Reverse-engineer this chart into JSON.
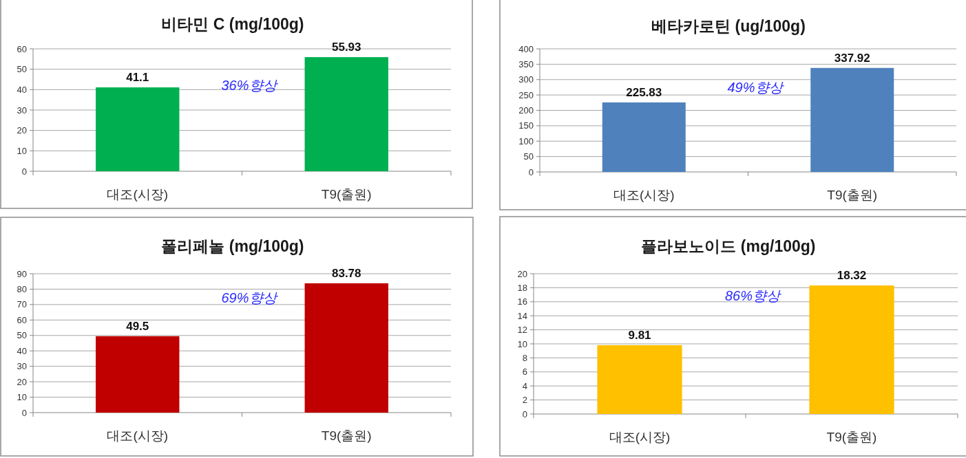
{
  "chart_data": [
    {
      "type": "bar",
      "title": "비타민 C (mg/100g)",
      "categories": [
        "대조(시장)",
        "T9(출원)"
      ],
      "values": [
        41.1,
        55.93
      ],
      "color": "#00b050",
      "ylim": [
        0,
        60
      ],
      "yticks": [
        0,
        10,
        20,
        30,
        40,
        50,
        60
      ],
      "grid": "y",
      "data_labels": true,
      "annotations": [
        "36%향상"
      ]
    },
    {
      "type": "bar",
      "title": "베타카로틴 (ug/100g)",
      "categories": [
        "대조(시장)",
        "T9(출원)"
      ],
      "values": [
        225.83,
        337.92
      ],
      "color": "#4f81bd",
      "ylim": [
        0,
        400
      ],
      "yticks": [
        0,
        50,
        100,
        150,
        200,
        250,
        300,
        350,
        400
      ],
      "grid": "y",
      "data_labels": true,
      "annotations": [
        "49%향상"
      ]
    },
    {
      "type": "bar",
      "title": "폴리페놀 (mg/100g)",
      "categories": [
        "대조(시장)",
        "T9(출원)"
      ],
      "values": [
        49.5,
        83.78
      ],
      "color": "#c00000",
      "ylim": [
        0,
        90
      ],
      "yticks": [
        0,
        10,
        20,
        30,
        40,
        50,
        60,
        70,
        80,
        90
      ],
      "grid": "y",
      "data_labels": true,
      "annotations": [
        "69%향상"
      ]
    },
    {
      "type": "bar",
      "title": "플라보노이드 (mg/100g)",
      "categories": [
        "대조(시장)",
        "T9(출원)"
      ],
      "values": [
        9.81,
        18.32
      ],
      "color": "#ffc000",
      "ylim": [
        0,
        20
      ],
      "yticks": [
        0,
        2,
        4,
        6,
        8,
        10,
        12,
        14,
        16,
        18,
        20
      ],
      "grid": "y",
      "data_labels": true,
      "annotations": [
        "86%향상"
      ]
    }
  ]
}
